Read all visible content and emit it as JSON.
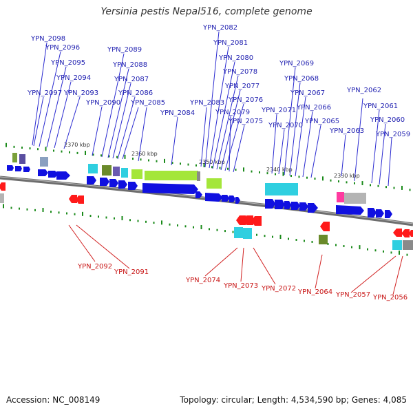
{
  "title": "Yersinia pestis Nepal516, complete genome",
  "footer": {
    "accession": "Accession: NC_008149",
    "summary": "Topology: circular; Length: 4,534,590 bp; Genes: 4,085"
  },
  "colors": {
    "forward": "#1f1fb0",
    "reverse": "#c81414",
    "backbone": "#777777",
    "tick": "#1a8a1a"
  },
  "kbp_ticks": [
    "2370 kbp",
    "2360 kbp",
    "2350 kbp",
    "2340 kbp",
    "2330 kbp"
  ],
  "forward_genes": [
    "YPN_2098",
    "YPN_2096",
    "YPN_2095",
    "YPN_2094",
    "YPN_2097",
    "YPN_2093",
    "YPN_2090",
    "YPN_2089",
    "YPN_2088",
    "YPN_2087",
    "YPN_2086",
    "YPN_2085",
    "YPN_2084",
    "YPN_2083",
    "YPN_2082",
    "YPN_2081",
    "YPN_2080",
    "YPN_2078",
    "YPN_2077",
    "YPN_2076",
    "YPN_2079",
    "YPN_2075",
    "YPN_2071",
    "YPN_2070",
    "YPN_2069",
    "YPN_2068",
    "YPN_2067",
    "YPN_2066",
    "YPN_2065",
    "YPN_2063",
    "YPN_2062",
    "YPN_2061",
    "YPN_2060",
    "YPN_2059"
  ],
  "reverse_genes": [
    "YPN_2092",
    "YPN_2091",
    "YPN_2074",
    "YPN_2073",
    "YPN_2072",
    "YPN_2064",
    "YPN_2057",
    "YPN_2056"
  ]
}
